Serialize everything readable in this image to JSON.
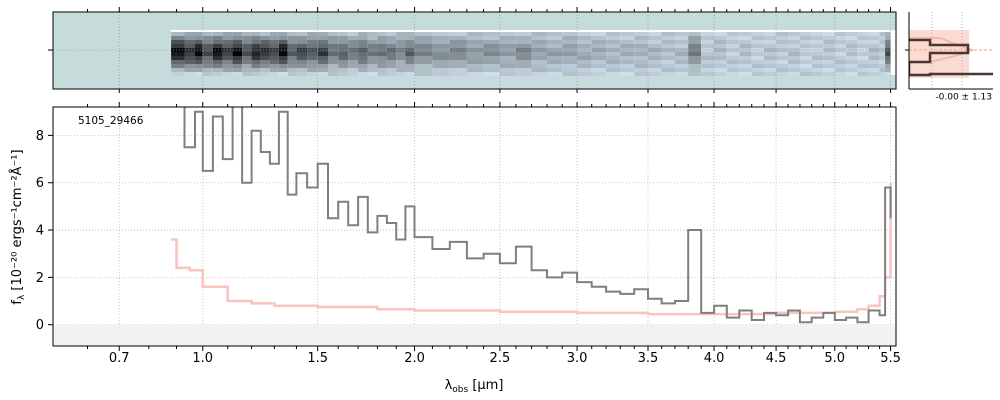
{
  "chart_data": [
    {
      "type": "image",
      "name": "2d-spectrum-panel",
      "description_colormap": "bone_r",
      "background_color": "#c5dcdb",
      "trace_start_x": 0.88
    },
    {
      "type": "line",
      "name": "cross-dispersion-profile",
      "annotation": "-0.00 ± 1.13",
      "profile_color": "#4a3530",
      "model_color": "#f4b8a8"
    },
    {
      "type": "line",
      "name": "1d-spectrum",
      "object_label": "5105_29466",
      "xlabel_prefix": "λ",
      "xlabel_sub": "obs",
      "xlabel_unit": " [μm]",
      "ylabel": "f",
      "ylabel_sub": "λ",
      "ylabel_rest": " [10⁻²⁰ ergs⁻¹cm⁻²Å⁻¹]",
      "x_scale": "sqrt",
      "xlim": [
        0.5,
        5.55
      ],
      "ylim": [
        -0.9,
        9.2
      ],
      "x_ticks": [
        0.7,
        1.0,
        1.5,
        2.0,
        2.5,
        3.0,
        3.5,
        4.0,
        4.5,
        5.0,
        5.5
      ],
      "x_tick_labels": [
        "0.7",
        "1.0",
        "1.5",
        "2.0",
        "2.5",
        "3.0",
        "3.5",
        "4.0",
        "4.5",
        "5.0",
        "5.5"
      ],
      "y_ticks": [
        0,
        2,
        4,
        6,
        8
      ],
      "y_tick_labels": [
        "0",
        "2",
        "4",
        "6",
        "8"
      ],
      "grid": true,
      "series": [
        {
          "role": "flux",
          "color": "#7f7f7f",
          "x": [
            0.88,
            0.93,
            0.97,
            1.0,
            1.04,
            1.08,
            1.12,
            1.16,
            1.2,
            1.24,
            1.28,
            1.32,
            1.36,
            1.4,
            1.45,
            1.5,
            1.55,
            1.6,
            1.65,
            1.7,
            1.75,
            1.8,
            1.85,
            1.9,
            1.95,
            2.0,
            2.1,
            2.2,
            2.3,
            2.4,
            2.5,
            2.6,
            2.7,
            2.8,
            2.9,
            3.0,
            3.1,
            3.2,
            3.3,
            3.4,
            3.5,
            3.6,
            3.7,
            3.8,
            3.9,
            4.0,
            4.1,
            4.2,
            4.3,
            4.4,
            4.5,
            4.6,
            4.7,
            4.8,
            4.9,
            5.0,
            5.1,
            5.2,
            5.3,
            5.4,
            5.45,
            5.5
          ],
          "y": [
            9.5,
            7.5,
            9.0,
            6.5,
            8.8,
            7.0,
            9.5,
            6.0,
            8.2,
            7.3,
            6.8,
            9.0,
            5.5,
            6.4,
            5.8,
            6.8,
            4.5,
            5.2,
            4.2,
            5.4,
            3.9,
            4.6,
            4.3,
            3.6,
            5.0,
            3.7,
            3.2,
            3.5,
            2.8,
            3.0,
            2.6,
            3.3,
            2.3,
            2.0,
            2.2,
            1.8,
            1.6,
            1.4,
            1.3,
            1.5,
            1.1,
            0.9,
            1.0,
            4.0,
            0.5,
            0.8,
            0.3,
            0.6,
            0.2,
            0.5,
            0.4,
            0.6,
            0.1,
            0.3,
            0.5,
            0.2,
            0.3,
            0.1,
            0.6,
            0.4,
            5.8,
            4.5
          ]
        },
        {
          "role": "error",
          "color": "#f7c4c0",
          "x": [
            0.88,
            0.9,
            0.95,
            1.0,
            1.1,
            1.2,
            1.3,
            1.5,
            1.8,
            2.0,
            2.5,
            3.0,
            3.5,
            4.0,
            4.5,
            5.0,
            5.2,
            5.3,
            5.4,
            5.45,
            5.5
          ],
          "y": [
            3.6,
            2.4,
            2.3,
            1.6,
            1.0,
            0.9,
            0.8,
            0.75,
            0.65,
            0.6,
            0.55,
            0.5,
            0.45,
            0.45,
            0.5,
            0.55,
            0.65,
            0.8,
            1.2,
            2.0,
            6.0
          ]
        }
      ]
    }
  ]
}
